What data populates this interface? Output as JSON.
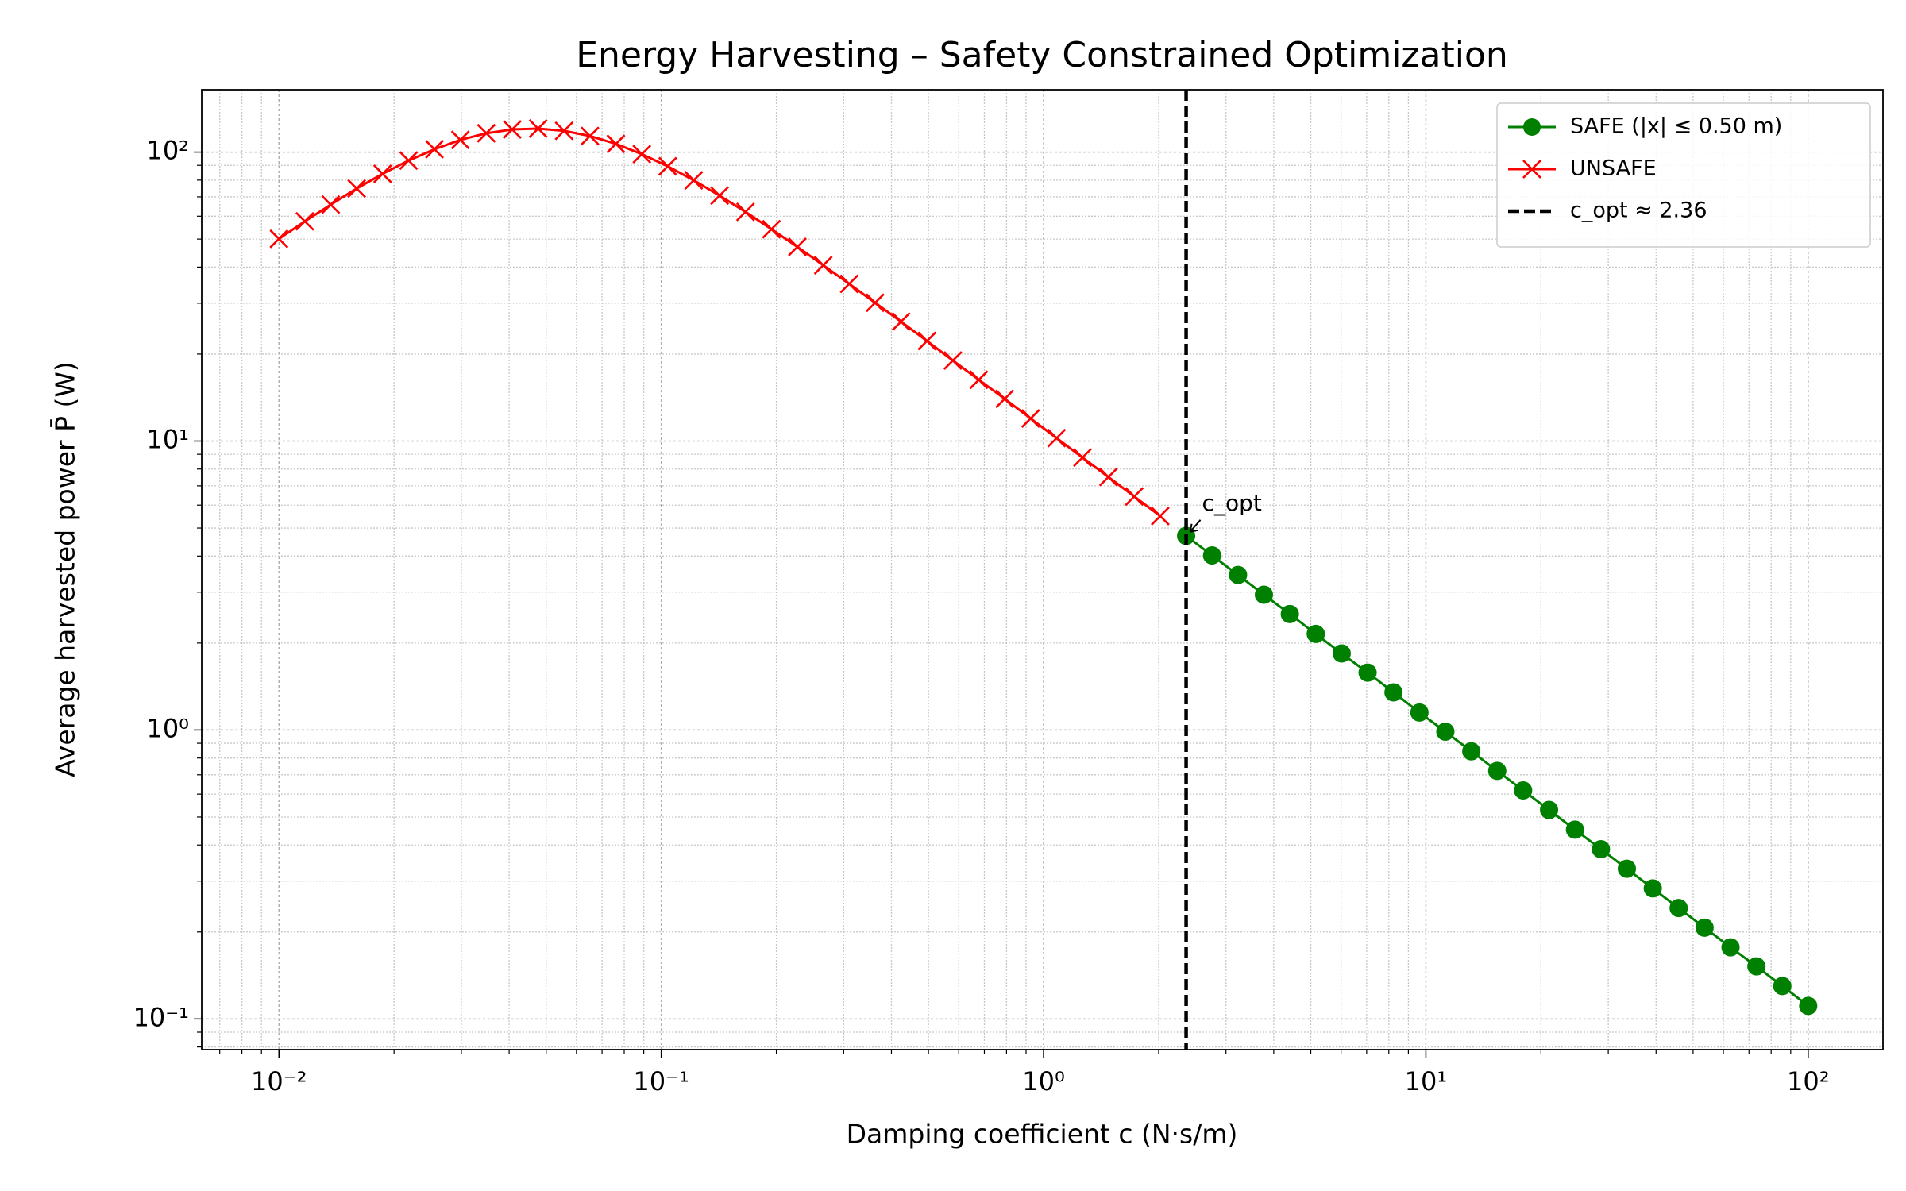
{
  "chart_data": {
    "type": "line",
    "title": "Energy Harvesting – Safety Constrained Optimization",
    "xlabel": "Damping coefficient c (N·s/m)",
    "ylabel": "Average harvested power P̄ (W)",
    "xscale": "log",
    "yscale": "log",
    "xlim": [
      0.00628,
      156.9
    ],
    "ylim": [
      0.0783,
      164.4
    ],
    "xticks": [
      {
        "value": 0.01,
        "label": "10⁻²"
      },
      {
        "value": 0.1,
        "label": "10⁻¹"
      },
      {
        "value": 1,
        "label": "10⁰"
      },
      {
        "value": 10,
        "label": "10¹"
      },
      {
        "value": 100,
        "label": "10²"
      }
    ],
    "yticks": [
      {
        "value": 0.1,
        "label": "10⁻¹"
      },
      {
        "value": 1,
        "label": "10⁰"
      },
      {
        "value": 10,
        "label": "10¹"
      },
      {
        "value": 100,
        "label": "10²"
      }
    ],
    "grid": true,
    "legend": "upper right",
    "series": [
      {
        "name": "SAFE (|x| ≤ 0.50 m)",
        "color": "#008000",
        "marker": "o",
        "x": [
          2.36,
          2.759,
          3.226,
          3.77,
          4.407,
          5.152,
          6.023,
          7.04,
          8.229,
          9.621,
          11.246,
          13.145,
          15.37,
          17.96,
          21.0,
          24.55,
          28.7,
          33.55,
          39.22,
          45.84,
          53.58,
          62.64,
          73.22,
          85.59,
          100
        ],
        "values": [
          4.7,
          4.02,
          3.44,
          2.94,
          2.52,
          2.15,
          1.84,
          1.58,
          1.35,
          1.15,
          0.987,
          0.844,
          0.722,
          0.618,
          0.529,
          0.452,
          0.387,
          0.331,
          0.283,
          0.242,
          0.207,
          0.177,
          0.152,
          0.13,
          0.111
        ]
      },
      {
        "name": "UNSAFE",
        "color": "#ff0000",
        "marker": "x",
        "x": [
          0.01,
          0.01169,
          0.01366,
          0.01597,
          0.01867,
          0.02183,
          0.02551,
          0.02982,
          0.03486,
          0.04075,
          0.04764,
          0.05569,
          0.0651,
          0.0761,
          0.08896,
          0.104,
          0.1216,
          0.1421,
          0.1661,
          0.1942,
          0.227,
          0.2653,
          0.3102,
          0.3626,
          0.4239,
          0.4955,
          0.5792,
          0.6771,
          0.7914,
          0.9252,
          1.0815,
          1.264,
          1.478,
          1.727,
          2.019
        ],
        "values": [
          50.1,
          57.6,
          65.8,
          74.8,
          84.1,
          93.5,
          102.3,
          110.2,
          116.2,
          119.8,
          120.6,
          118.5,
          113.7,
          106.8,
          98.4,
          89.3,
          79.9,
          70.7,
          62.1,
          54.1,
          47.0,
          40.6,
          35.0,
          30.1,
          25.9,
          22.2,
          19.0,
          16.3,
          14.0,
          11.97,
          10.24,
          8.77,
          7.51,
          6.43,
          5.5
        ]
      }
    ],
    "vline": {
      "x": 2.36,
      "label": "c_opt ≈ 2.36",
      "color": "#000000"
    },
    "annotation": {
      "text": "c_opt",
      "x": 2.36,
      "y": 4.7
    }
  }
}
